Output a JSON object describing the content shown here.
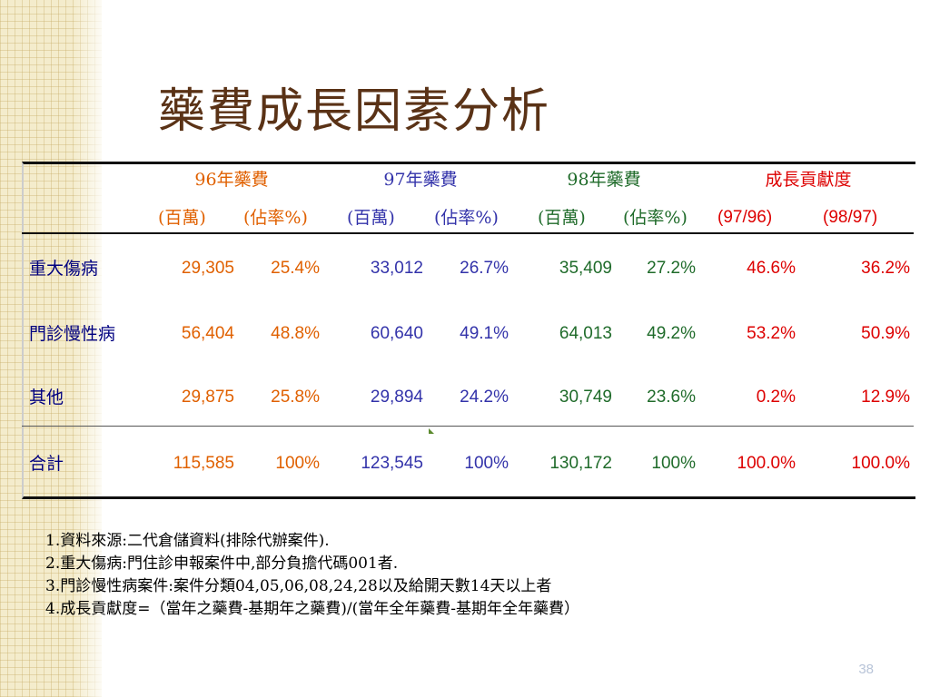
{
  "title": "藥費成長因素分析",
  "colors": {
    "y96": "#e06000",
    "y97": "#3333aa",
    "y98": "#1f6b2a",
    "contrib": "#dd0000",
    "title": "#5a3216",
    "rowlabel": "#000080"
  },
  "table": {
    "headers": {
      "y96": "96年藥費",
      "y97": "97年藥費",
      "y98": "98年藥費",
      "contrib": "成長貢獻度",
      "unit": "(百萬)",
      "share": "(佔率%)",
      "c9796": "(97/96)",
      "c9897": "(98/97)"
    },
    "rows": [
      {
        "label": "重大傷病",
        "v96": "29,305",
        "p96": "25.4%",
        "v97": "33,012",
        "p97": "26.7%",
        "v98": "35,409",
        "p98": "27.2%",
        "c1": "46.6%",
        "c2": "36.2%"
      },
      {
        "label": "門診慢性病",
        "v96": "56,404",
        "p96": "48.8%",
        "v97": "60,640",
        "p97": "49.1%",
        "v98": "64,013",
        "p98": "49.2%",
        "c1": "53.2%",
        "c2": "50.9%"
      },
      {
        "label": "其他",
        "v96": "29,875",
        "p96": "25.8%",
        "v97": "29,894",
        "p97": "24.2%",
        "v98": "30,749",
        "p98": "23.6%",
        "c1": "0.2%",
        "c2": "12.9%"
      },
      {
        "label": "合計",
        "v96": "115,585",
        "p96": "100%",
        "v97": "123,545",
        "p97": "100%",
        "v98": "130,172",
        "p98": "100%",
        "c1": "100.0%",
        "c2": "100.0%"
      }
    ]
  },
  "notes": [
    "1.資料來源:二代倉儲資料(排除代辦案件).",
    "2.重大傷病:門住診申報案件中,部分負擔代碼001者.",
    "3.門診慢性病案件:案件分類04,05,06,08,24,28以及給開天數14天以上者",
    "4.成長貢獻度=（當年之藥費-基期年之藥費)/(當年全年藥費-基期年全年藥費）"
  ],
  "page_number": "38"
}
